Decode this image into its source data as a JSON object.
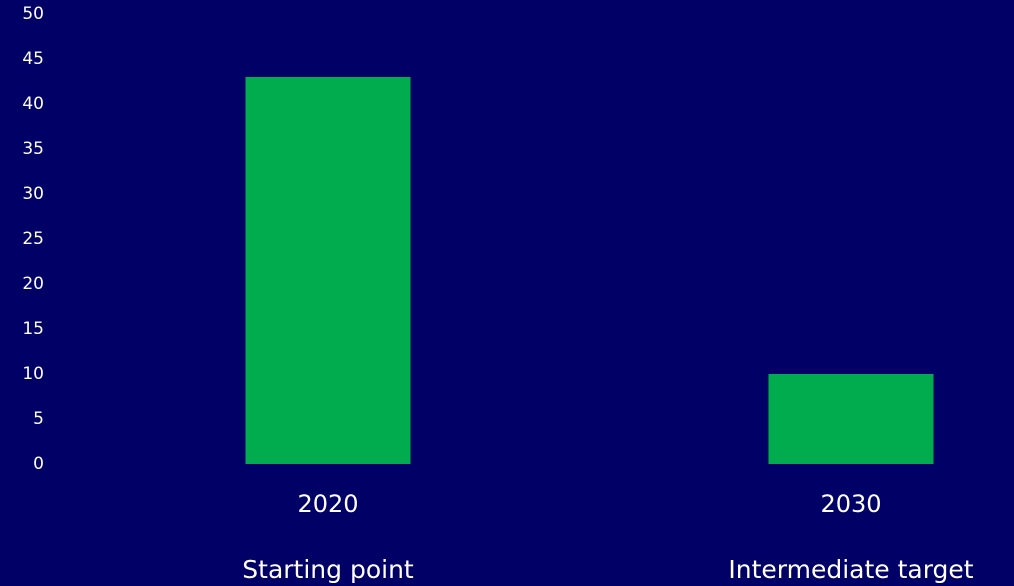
{
  "colors": {
    "background": "#000066",
    "bar": "#00AC4E",
    "text": "#FFFFFF"
  },
  "chart_data": {
    "type": "bar",
    "title": "",
    "xlabel": "",
    "ylabel": "",
    "categories": [
      "2020",
      "2030"
    ],
    "category_sublabels": [
      "Starting point",
      "Intermediate target"
    ],
    "values": [
      43,
      10
    ],
    "ylim": [
      0,
      50
    ],
    "yticks": [
      0,
      5,
      10,
      15,
      20,
      25,
      30,
      35,
      40,
      45,
      50
    ],
    "grid": false,
    "legend": "none"
  }
}
